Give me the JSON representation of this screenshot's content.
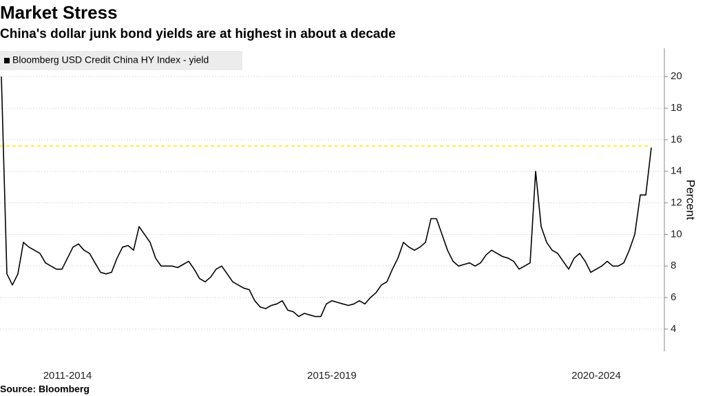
{
  "chart_data": {
    "type": "line",
    "title": "Market Stress",
    "subtitle": "China's dollar junk bond yields are at highest in about a decade",
    "source": "Source: Bloomberg",
    "y_label": "Percent",
    "categories": [
      null,
      null,
      null,
      null,
      null,
      null,
      null,
      null,
      null,
      null,
      null,
      null,
      "2011-2014",
      null,
      null,
      null,
      null,
      null,
      null,
      null,
      null,
      null,
      null,
      null,
      null,
      null,
      null,
      null,
      null,
      null,
      null,
      null,
      null,
      null,
      null,
      null,
      null,
      null,
      null,
      null,
      null,
      null,
      null,
      null,
      null,
      null,
      null,
      null,
      null,
      null,
      null,
      null,
      null,
      null,
      null,
      null,
      null,
      null,
      null,
      null,
      "2015-2019",
      null,
      null,
      null,
      null,
      null,
      null,
      null,
      null,
      null,
      null,
      null,
      null,
      null,
      null,
      null,
      null,
      null,
      null,
      null,
      null,
      null,
      null,
      null,
      null,
      null,
      null,
      null,
      null,
      null,
      null,
      null,
      null,
      null,
      null,
      null,
      null,
      null,
      null,
      null,
      null,
      null,
      null,
      null,
      null,
      null,
      null,
      null,
      "2020-2024",
      null,
      null,
      null,
      null,
      null,
      null,
      null,
      null,
      null,
      null
    ],
    "series": [
      {
        "name": "Bloomberg USD Credit China HY Index - yield",
        "color": "#000000",
        "values": [
          20,
          7.5,
          6.8,
          7.5,
          9.5,
          9.2,
          9.0,
          8.8,
          8.2,
          8.0,
          7.8,
          7.8,
          8.5,
          9.2,
          9.4,
          9.0,
          8.8,
          8.2,
          7.6,
          7.5,
          7.6,
          8.5,
          9.2,
          9.3,
          9.0,
          10.5,
          10.0,
          9.5,
          8.5,
          8.0,
          8.0,
          8.0,
          7.9,
          8.1,
          8.3,
          7.8,
          7.2,
          7.0,
          7.3,
          7.8,
          8.0,
          7.5,
          7.0,
          6.8,
          6.6,
          6.5,
          5.8,
          5.4,
          5.3,
          5.5,
          5.6,
          5.8,
          5.2,
          5.1,
          4.8,
          5.0,
          4.9,
          4.8,
          4.8,
          5.6,
          5.8,
          5.7,
          5.6,
          5.5,
          5.6,
          5.8,
          5.6,
          6.0,
          6.3,
          6.8,
          7.0,
          7.8,
          8.5,
          9.5,
          9.2,
          9.0,
          9.2,
          9.5,
          11.0,
          11.0,
          10.0,
          9.0,
          8.3,
          8.0,
          8.1,
          8.2,
          8.0,
          8.2,
          8.7,
          9.0,
          8.8,
          8.6,
          8.5,
          8.3,
          7.8,
          8.0,
          8.2,
          14.0,
          10.5,
          9.5,
          9.0,
          8.8,
          8.3,
          7.8,
          8.5,
          8.8,
          8.3,
          7.6,
          7.8,
          8.0,
          8.3,
          8.0,
          8.0,
          8.2,
          9.0,
          10.0,
          12.5,
          12.5,
          15.5
        ]
      }
    ],
    "reference_line": {
      "value": 15.6,
      "color": "#ffee33"
    },
    "ylim": [
      2.6,
      21.8
    ],
    "yticks": [
      4,
      6,
      8,
      10,
      12,
      14,
      16,
      18,
      20
    ],
    "grid": true
  }
}
